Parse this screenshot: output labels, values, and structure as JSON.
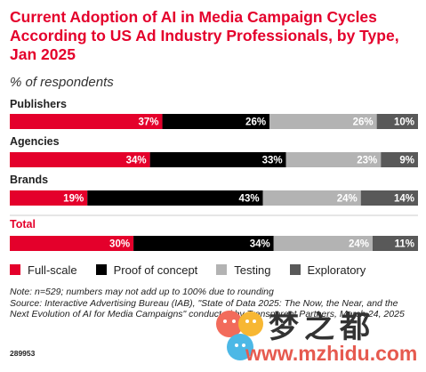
{
  "title": "Current Adoption of AI in Media Campaign Cycles According to US Ad Industry Professionals, by Type, Jan 2025",
  "subtitle": "% of respondents",
  "colors": {
    "full_scale": "#e4002b",
    "proof_of_concept": "#000000",
    "testing": "#b3b3b3",
    "exploratory": "#595959",
    "total_label": "#e4002b"
  },
  "legend": [
    {
      "label": "Full-scale",
      "color": "#e4002b"
    },
    {
      "label": "Proof of concept",
      "color": "#000000"
    },
    {
      "label": "Testing",
      "color": "#b3b3b3"
    },
    {
      "label": "Exploratory",
      "color": "#595959"
    }
  ],
  "chart_data": {
    "type": "bar",
    "orientation": "horizontal",
    "stacked": true,
    "categories": [
      "Publishers",
      "Agencies",
      "Brands",
      "Total"
    ],
    "series": [
      {
        "name": "Full-scale",
        "values": [
          37,
          34,
          19,
          30
        ],
        "labels": [
          "37%",
          "34%",
          "19%",
          "30%"
        ]
      },
      {
        "name": "Proof of concept",
        "values": [
          26,
          33,
          43,
          34
        ],
        "labels": [
          "26%",
          "33%",
          "43%",
          "34%"
        ]
      },
      {
        "name": "Testing",
        "values": [
          26,
          23,
          24,
          24
        ],
        "labels": [
          "26%",
          "23%",
          "24%",
          "24%"
        ]
      },
      {
        "name": "Exploratory",
        "values": [
          10,
          9,
          14,
          11
        ],
        "labels": [
          "10%",
          "9%",
          "14%",
          "11%"
        ]
      }
    ],
    "grid": false,
    "legend_position": "bottom"
  },
  "footnotes": {
    "note": "Note: n=529; numbers may not add up to 100% due to rounding",
    "source": "Source: Interactive Advertising Bureau (IAB), \"State of Data 2025: The Now, the Near, and the Next Evolution of AI for Media Campaigns\" conducted by Transparent Partners, March 24, 2025",
    "id": "289953"
  },
  "watermark": {
    "text_cn": "梦之都",
    "url": "www.mzhidu.com"
  }
}
